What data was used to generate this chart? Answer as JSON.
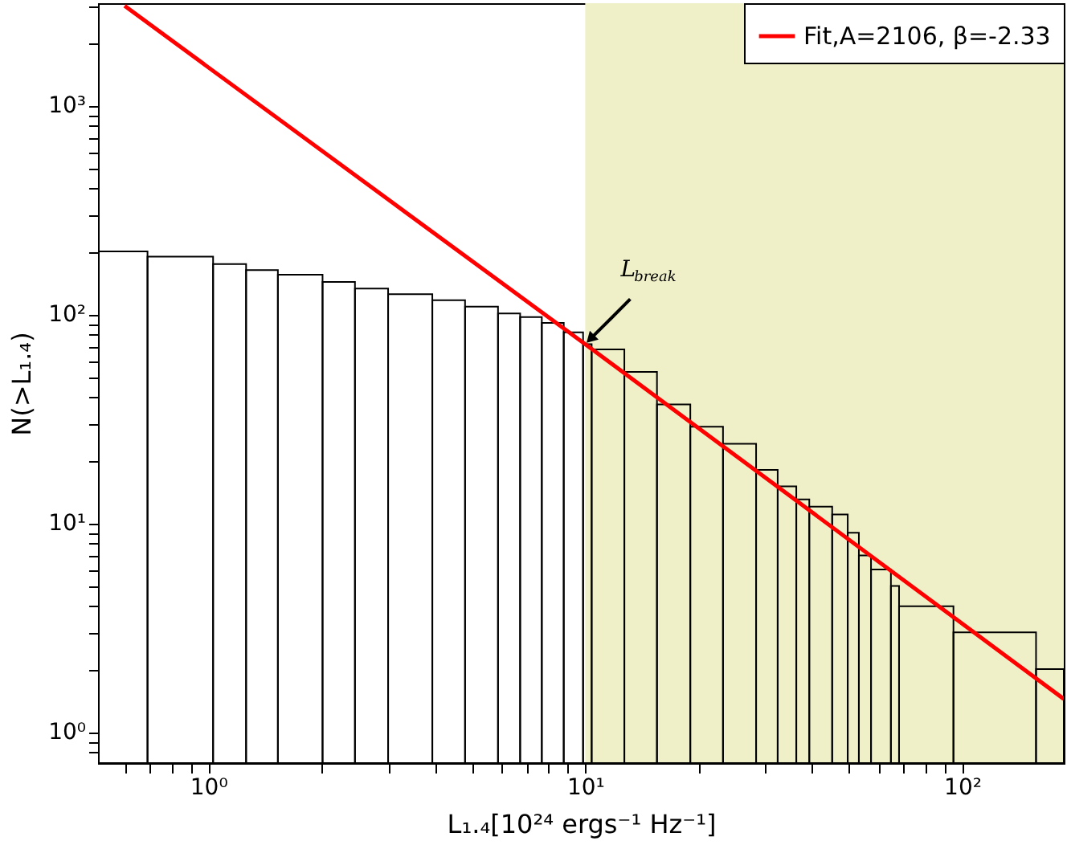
{
  "chart_data": {
    "type": "histogram",
    "xlabel": "L₁.₄[10²⁴ ergs⁻¹ Hz⁻¹]",
    "ylabel": "N(>L₁.₄)",
    "bins": [
      0.51,
      0.69,
      1.03,
      1.26,
      1.53,
      2.01,
      2.45,
      3.0,
      3.93,
      4.8,
      5.87,
      6.72,
      7.67,
      8.77,
      9.87,
      10.4,
      12.7,
      15.5,
      19.0,
      23.2,
      28.4,
      32.4,
      36.3,
      39.3,
      45.2,
      49.7,
      53.2,
      57.3,
      64.7,
      68,
      94.8,
      157,
      186
    ],
    "values": [
      200,
      189,
      174,
      163,
      155,
      143,
      133,
      125,
      117,
      109,
      101,
      97,
      91,
      82,
      72,
      68,
      53,
      37,
      29,
      24,
      18,
      15,
      13,
      12,
      11,
      9,
      7,
      6,
      5,
      4,
      3,
      2
    ],
    "color": "#000000",
    "series": [
      {
        "type": "line",
        "name": "Fit,A=2106, β=-2.33",
        "color": "#ff0000",
        "x": [
          0.6,
          10,
          186
        ],
        "values": [
          3000,
          72,
          1.44
        ]
      }
    ],
    "bands": [
      {
        "axis": "x",
        "from": 10,
        "to": 186,
        "color": "#f0f0c8"
      }
    ],
    "annotations": [
      {
        "text": "L$_{break}$",
        "x": 10,
        "y": 72
      }
    ],
    "log": "xy",
    "xlim": [
      0.51,
      186
    ],
    "ylim": [
      0.71,
      3090
    ],
    "xticks": [
      {
        "value": 0.6,
        "label": null
      },
      {
        "value": 0.7,
        "label": null
      },
      {
        "value": 0.8,
        "label": null
      },
      {
        "value": 0.9,
        "label": null
      },
      {
        "value": 1,
        "label": "10⁰"
      },
      {
        "value": 2,
        "label": null
      },
      {
        "value": 3,
        "label": null
      },
      {
        "value": 4,
        "label": null
      },
      {
        "value": 5,
        "label": null
      },
      {
        "value": 6,
        "label": null
      },
      {
        "value": 7,
        "label": null
      },
      {
        "value": 8,
        "label": null
      },
      {
        "value": 9,
        "label": null
      },
      {
        "value": 10,
        "label": "10¹"
      },
      {
        "value": 20,
        "label": null
      },
      {
        "value": 30,
        "label": null
      },
      {
        "value": 40,
        "label": null
      },
      {
        "value": 50,
        "label": null
      },
      {
        "value": 60,
        "label": null
      },
      {
        "value": 70,
        "label": null
      },
      {
        "value": 80,
        "label": null
      },
      {
        "value": 90,
        "label": null
      },
      {
        "value": 100,
        "label": "10²"
      }
    ],
    "yticks": [
      {
        "value": 0.8,
        "label": null
      },
      {
        "value": 0.9,
        "label": null
      },
      {
        "value": 1,
        "label": "10⁰"
      },
      {
        "value": 2,
        "label": null
      },
      {
        "value": 3,
        "label": null
      },
      {
        "value": 4,
        "label": null
      },
      {
        "value": 5,
        "label": null
      },
      {
        "value": 6,
        "label": null
      },
      {
        "value": 7,
        "label": null
      },
      {
        "value": 8,
        "label": null
      },
      {
        "value": 9,
        "label": null
      },
      {
        "value": 10,
        "label": "10¹"
      },
      {
        "value": 20,
        "label": null
      },
      {
        "value": 30,
        "label": null
      },
      {
        "value": 40,
        "label": null
      },
      {
        "value": 50,
        "label": null
      },
      {
        "value": 60,
        "label": null
      },
      {
        "value": 70,
        "label": null
      },
      {
        "value": 80,
        "label": null
      },
      {
        "value": 90,
        "label": null
      },
      {
        "value": 100,
        "label": "10²"
      },
      {
        "value": 200,
        "label": null
      },
      {
        "value": 300,
        "label": null
      },
      {
        "value": 400,
        "label": null
      },
      {
        "value": 500,
        "label": null
      },
      {
        "value": 600,
        "label": null
      },
      {
        "value": 700,
        "label": null
      },
      {
        "value": 800,
        "label": null
      },
      {
        "value": 900,
        "label": null
      },
      {
        "value": 1000,
        "label": "10³"
      },
      {
        "value": 2000,
        "label": null
      },
      {
        "value": 3000,
        "label": null
      }
    ],
    "grid": false,
    "legend": "top right"
  }
}
